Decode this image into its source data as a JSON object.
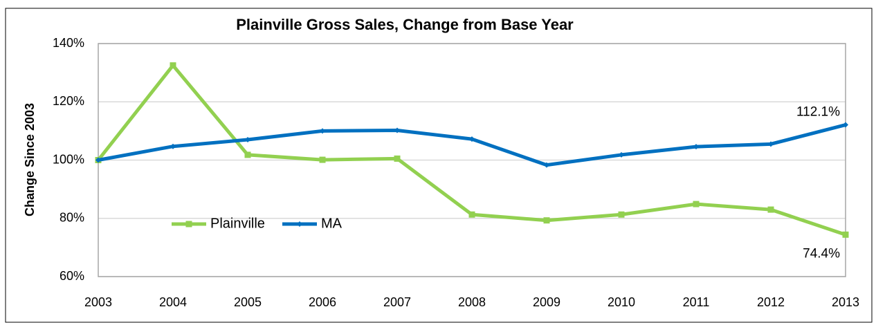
{
  "chart_data": {
    "type": "line",
    "title": "Plainville Gross Sales, Change from Base Year",
    "y_label": "Change Since 2003",
    "categories": [
      "2003",
      "2004",
      "2005",
      "2006",
      "2007",
      "2008",
      "2009",
      "2010",
      "2011",
      "2012",
      "2013"
    ],
    "series": [
      {
        "name": "Plainville",
        "color": "#92d050",
        "label_color": "#4f6228",
        "marker": "square",
        "values": [
          100,
          132.5,
          101.8,
          100.1,
          100.5,
          81.3,
          79.3,
          81.3,
          84.9,
          83.0,
          74.4
        ],
        "value_labels": [
          null,
          null,
          null,
          null,
          null,
          null,
          null,
          null,
          null,
          null,
          "74.4%"
        ]
      },
      {
        "name": "MA",
        "color": "#0070c0",
        "label_color": "#1f3864",
        "marker": "diamond",
        "values": [
          100,
          104.7,
          107.0,
          110.0,
          110.2,
          107.2,
          98.3,
          101.8,
          104.6,
          105.5,
          112.1
        ],
        "value_labels": [
          null,
          null,
          null,
          null,
          null,
          null,
          null,
          null,
          null,
          null,
          "112.1%"
        ]
      }
    ],
    "ylim": [
      60,
      140
    ],
    "yticks": [
      {
        "value": 60,
        "label": "60%"
      },
      {
        "value": 80,
        "label": "80%"
      },
      {
        "value": 100,
        "label": "100%"
      },
      {
        "value": 120,
        "label": "120%"
      },
      {
        "value": 140,
        "label": "140%"
      }
    ],
    "grid": true
  }
}
